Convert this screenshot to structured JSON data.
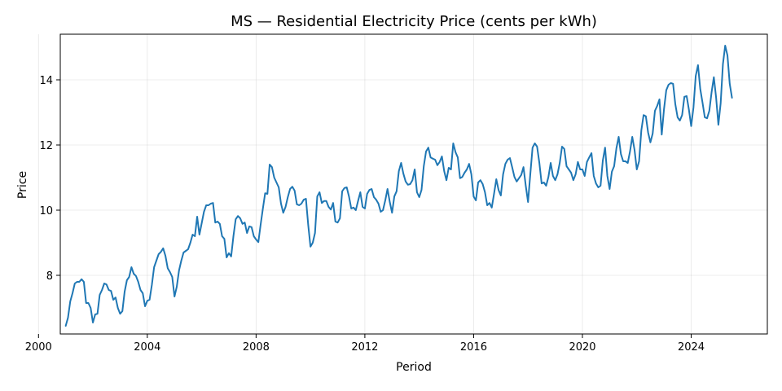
{
  "chart_data": {
    "type": "line",
    "title": "MS — Residential Electricity Price (cents per kWh)",
    "xlabel": "Period",
    "ylabel": "Price",
    "grid": true,
    "legend": "none",
    "xlim": [
      2000.8,
      2026.8
    ],
    "ylim": [
      6.2,
      15.4
    ],
    "x_ticks": [
      2000,
      2004,
      2008,
      2012,
      2016,
      2020,
      2024
    ],
    "x_tick_labels": [
      "2000",
      "2004",
      "2008",
      "2012",
      "2016",
      "2020",
      "2024"
    ],
    "y_ticks": [
      8,
      10,
      12,
      14
    ],
    "y_tick_labels": [
      "8",
      "10",
      "12",
      "14"
    ],
    "line_color": "#1f77b4",
    "x_start": "2001-01",
    "frequency": "monthly",
    "series": [
      {
        "values": [
          6.45,
          6.7,
          7.2,
          7.45,
          7.75,
          7.8,
          7.8,
          7.88,
          7.8,
          7.15,
          7.15,
          7.0,
          6.55,
          6.8,
          6.82,
          7.4,
          7.55,
          7.75,
          7.72,
          7.55,
          7.52,
          7.25,
          7.32,
          7.0,
          6.82,
          6.9,
          7.5,
          7.85,
          7.95,
          8.25,
          8.05,
          7.98,
          7.8,
          7.55,
          7.45,
          7.05,
          7.22,
          7.25,
          7.7,
          8.25,
          8.45,
          8.65,
          8.72,
          8.83,
          8.6,
          8.22,
          8.1,
          7.95,
          7.35,
          7.65,
          8.15,
          8.45,
          8.7,
          8.75,
          8.8,
          9.0,
          9.25,
          9.2,
          9.8,
          9.25,
          9.6,
          9.95,
          10.15,
          10.15,
          10.2,
          10.22,
          9.62,
          9.65,
          9.58,
          9.2,
          9.12,
          8.55,
          8.68,
          8.58,
          9.2,
          9.72,
          9.82,
          9.75,
          9.58,
          9.62,
          9.3,
          9.5,
          9.48,
          9.2,
          9.1,
          9.02,
          9.55,
          10.05,
          10.52,
          10.5,
          11.4,
          11.32,
          11.0,
          10.85,
          10.7,
          10.2,
          9.92,
          10.1,
          10.4,
          10.65,
          10.72,
          10.6,
          10.18,
          10.15,
          10.2,
          10.32,
          10.35,
          9.55,
          8.88,
          9.0,
          9.3,
          10.42,
          10.55,
          10.22,
          10.28,
          10.28,
          10.1,
          10.02,
          10.22,
          9.65,
          9.62,
          9.75,
          10.58,
          10.68,
          10.7,
          10.42,
          10.05,
          10.08,
          10.0,
          10.28,
          10.55,
          10.1,
          10.05,
          10.5,
          10.62,
          10.65,
          10.4,
          10.32,
          10.2,
          9.95,
          10.0,
          10.3,
          10.65,
          10.25,
          9.92,
          10.42,
          10.58,
          11.2,
          11.45,
          11.12,
          10.88,
          10.78,
          10.8,
          10.92,
          11.25,
          10.55,
          10.4,
          10.62,
          11.35,
          11.8,
          11.92,
          11.62,
          11.58,
          11.55,
          11.38,
          11.48,
          11.65,
          11.2,
          10.92,
          11.3,
          11.25,
          12.05,
          11.78,
          11.62,
          10.98,
          11.02,
          11.15,
          11.25,
          11.42,
          11.1,
          10.42,
          10.3,
          10.85,
          10.92,
          10.8,
          10.55,
          10.15,
          10.22,
          10.08,
          10.5,
          10.95,
          10.62,
          10.45,
          11.1,
          11.42,
          11.55,
          11.6,
          11.32,
          11.02,
          10.88,
          10.98,
          11.08,
          11.32,
          10.75,
          10.25,
          11.1,
          11.92,
          12.05,
          11.95,
          11.45,
          10.82,
          10.85,
          10.75,
          11.02,
          11.45,
          11.05,
          10.92,
          11.1,
          11.45,
          11.95,
          11.88,
          11.35,
          11.25,
          11.15,
          10.92,
          11.1,
          11.48,
          11.25,
          11.25,
          11.05,
          11.48,
          11.62,
          11.75,
          11.05,
          10.82,
          10.7,
          10.75,
          11.52,
          11.92,
          11.05,
          10.65,
          11.18,
          11.35,
          11.9,
          12.25,
          11.72,
          11.5,
          11.5,
          11.45,
          11.8,
          12.25,
          11.85,
          11.25,
          11.5,
          12.45,
          12.92,
          12.88,
          12.38,
          12.08,
          12.35,
          13.05,
          13.2,
          13.4,
          12.32,
          13.1,
          13.68,
          13.85,
          13.9,
          13.88,
          13.25,
          12.85,
          12.75,
          12.92,
          13.48,
          13.5,
          13.08,
          12.58,
          13.15,
          14.12,
          14.45,
          13.72,
          13.3,
          12.85,
          12.82,
          13.05,
          13.62,
          14.08,
          13.45,
          12.62,
          13.28,
          14.48,
          15.05,
          14.75,
          13.88,
          13.45
        ]
      }
    ]
  }
}
